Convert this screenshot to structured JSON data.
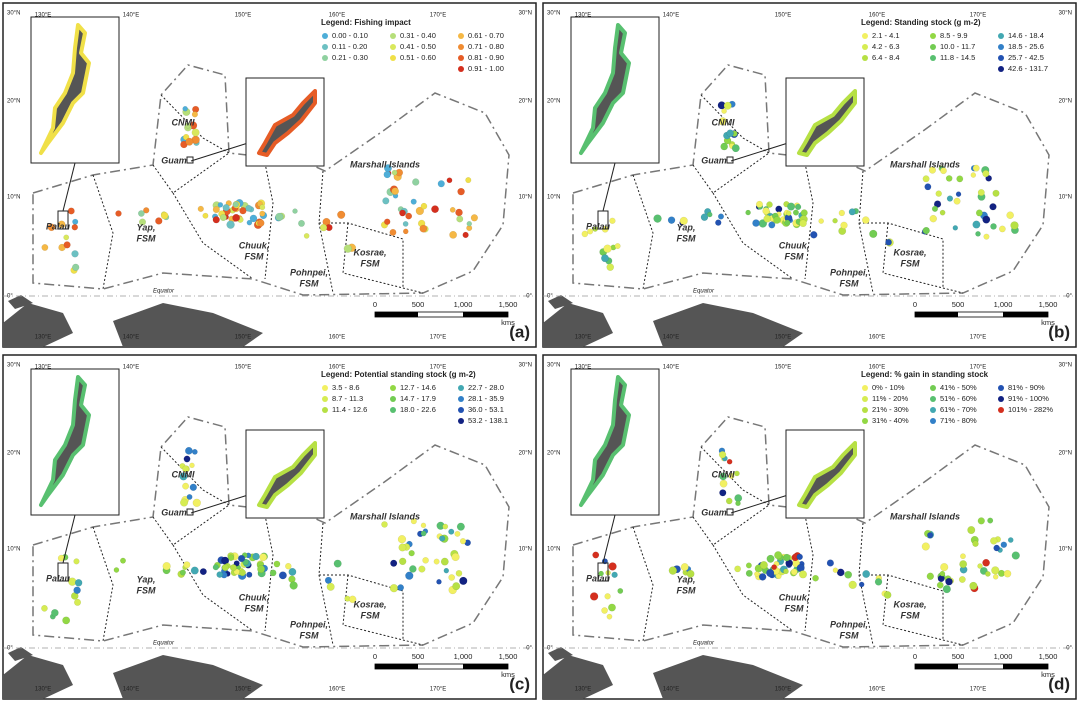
{
  "map": {
    "lat_labels": [
      "30°N",
      "20°N",
      "10°N",
      "0°"
    ],
    "lon_labels": [
      "130°E",
      "140°E",
      "150°E",
      "160°E",
      "170°E"
    ],
    "regions": [
      [
        "CNMI"
      ],
      [
        "Guam"
      ],
      [
        "Marshall Islands"
      ],
      [
        "Palau"
      ],
      [
        "Yap,",
        "FSM"
      ],
      [
        "Chuuk,",
        "FSM"
      ],
      [
        "Pohnpei,",
        "FSM"
      ],
      [
        "Kosrae,",
        "FSM"
      ]
    ],
    "equator": "Equator",
    "scale": {
      "ticks": [
        "0",
        "500",
        "1,000",
        "1,500"
      ],
      "unit": "kms"
    }
  },
  "panels": [
    {
      "letter": "(a)",
      "legend_title": "Legend: Fishing impact",
      "legend_columns": [
        [
          {
            "label": "0.00 - 0.10",
            "color": "#4eaed8"
          },
          {
            "label": "0.11 - 0.20",
            "color": "#6cc0c2"
          },
          {
            "label": "0.21 - 0.30",
            "color": "#8fd1a0"
          }
        ],
        [
          {
            "label": "0.31 - 0.40",
            "color": "#b6df7a"
          },
          {
            "label": "0.41 - 0.50",
            "color": "#d9e85c"
          },
          {
            "label": "0.51 - 0.60",
            "color": "#f0e048"
          }
        ],
        [
          {
            "label": "0.61 - 0.70",
            "color": "#f5b845"
          },
          {
            "label": "0.71 - 0.80",
            "color": "#f08c32"
          },
          {
            "label": "0.81 - 0.90",
            "color": "#e65c26"
          },
          {
            "label": "0.91 - 1.00",
            "color": "#d42f1e"
          }
        ]
      ]
    },
    {
      "letter": "(b)",
      "legend_title": "Legend: Standing stock (g m-2)",
      "legend_columns": [
        [
          {
            "label": "2.1 - 4.1",
            "color": "#f2f062"
          },
          {
            "label": "4.2 - 6.3",
            "color": "#d6ec52"
          },
          {
            "label": "6.4 - 8.4",
            "color": "#b6e044"
          }
        ],
        [
          {
            "label": "8.5 - 9.9",
            "color": "#92d844"
          },
          {
            "label": "10.0 - 11.7",
            "color": "#72cc52"
          },
          {
            "label": "11.8 - 14.5",
            "color": "#58c070"
          }
        ],
        [
          {
            "label": "14.6 - 18.4",
            "color": "#42a8b2"
          },
          {
            "label": "18.5 - 25.6",
            "color": "#3280c8"
          },
          {
            "label": "25.7 - 42.5",
            "color": "#2252b2"
          },
          {
            "label": "42.6 - 131.7",
            "color": "#122282"
          }
        ]
      ]
    },
    {
      "letter": "(c)",
      "legend_title": "Legend: Potential standing stock (g m-2)",
      "legend_columns": [
        [
          {
            "label": "3.5 - 8.6",
            "color": "#f2f062"
          },
          {
            "label": "8.7 - 11.3",
            "color": "#d6ec52"
          },
          {
            "label": "11.4 - 12.6",
            "color": "#b6e044"
          }
        ],
        [
          {
            "label": "12.7 - 14.6",
            "color": "#92d844"
          },
          {
            "label": "14.7 - 17.9",
            "color": "#72cc52"
          },
          {
            "label": "18.0 - 22.6",
            "color": "#58c070"
          }
        ],
        [
          {
            "label": "22.7 - 28.0",
            "color": "#42a8b2"
          },
          {
            "label": "28.1 - 35.9",
            "color": "#3280c8"
          },
          {
            "label": "36.0 - 53.1",
            "color": "#2252b2"
          },
          {
            "label": "53.2 - 138.1",
            "color": "#122282"
          }
        ]
      ]
    },
    {
      "letter": "(d)",
      "legend_title": "Legend: % gain in standing stock",
      "legend_columns": [
        [
          {
            "label": "0% - 10%",
            "color": "#f2f062"
          },
          {
            "label": "11% - 20%",
            "color": "#d6ec52"
          },
          {
            "label": "21% - 30%",
            "color": "#b6e044"
          },
          {
            "label": "31% - 40%",
            "color": "#92d844"
          }
        ],
        [
          {
            "label": "41% - 50%",
            "color": "#72cc52"
          },
          {
            "label": "51% - 60%",
            "color": "#58c070"
          },
          {
            "label": "61% - 70%",
            "color": "#42a8b2"
          },
          {
            "label": "71% - 80%",
            "color": "#3280c8"
          }
        ],
        [
          {
            "label": "81% - 90%",
            "color": "#2252b2"
          },
          {
            "label": "91% - 100%",
            "color": "#122282"
          },
          {
            "label": "101% - 282%",
            "color": "#d42f1e"
          }
        ]
      ]
    }
  ]
}
